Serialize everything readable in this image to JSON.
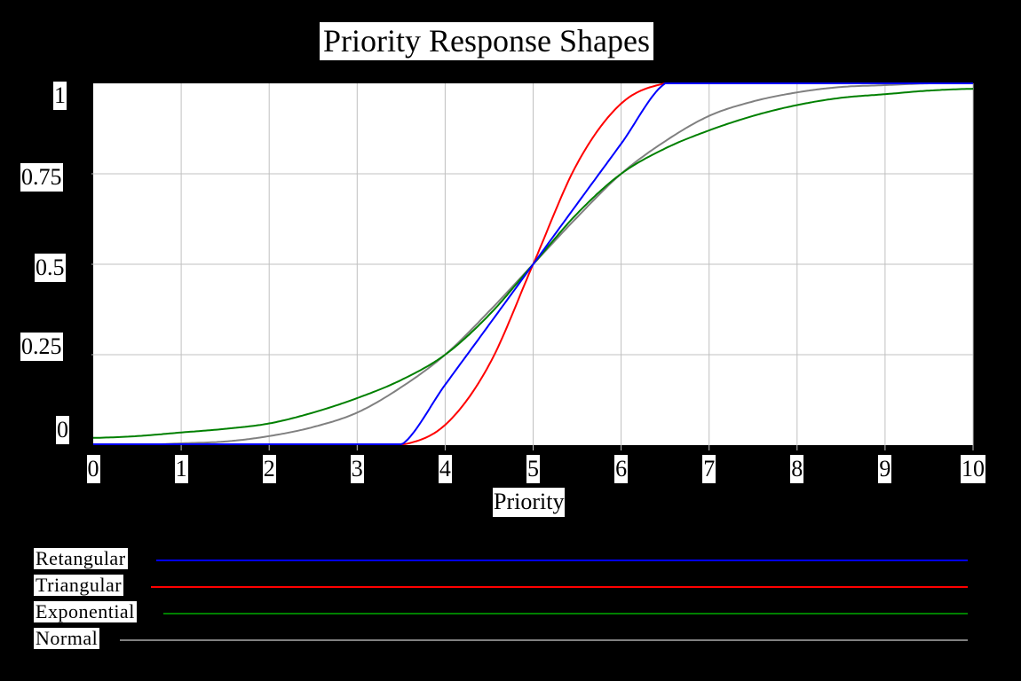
{
  "chart_data": {
    "type": "line",
    "title": "Priority Response Shapes",
    "xlabel": "Priority",
    "ylabel": "",
    "xlim": [
      0,
      10
    ],
    "ylim": [
      0,
      1
    ],
    "x_ticks": [
      "0",
      "1",
      "2",
      "3",
      "4",
      "5",
      "6",
      "7",
      "8",
      "9",
      "10"
    ],
    "y_ticks": [
      "0",
      "0.25",
      "0.5",
      "0.75",
      "1"
    ],
    "grid": true,
    "legend_position": "bottom",
    "x": [
      0,
      0.5,
      1,
      1.5,
      2,
      2.5,
      3,
      3.5,
      4,
      4.5,
      5,
      5.5,
      6,
      6.5,
      7,
      7.5,
      8,
      8.5,
      9,
      9.5,
      10
    ],
    "series": [
      {
        "name": "Retangular",
        "color": "#0000ff",
        "values": [
          0,
          0,
          0,
          0,
          0,
          0,
          0,
          0,
          0.167,
          0.333,
          0.5,
          0.667,
          0.833,
          1,
          1,
          1,
          1,
          1,
          1,
          1,
          1
        ]
      },
      {
        "name": "Triangular",
        "color": "#ff0000",
        "values": [
          0,
          0,
          0,
          0,
          0,
          0,
          0,
          0,
          0.056,
          0.222,
          0.5,
          0.778,
          0.944,
          1,
          1,
          1,
          1,
          1,
          1,
          1,
          1
        ]
      },
      {
        "name": "Exponential",
        "color": "#008000",
        "values": [
          0.02,
          0.025,
          0.035,
          0.045,
          0.06,
          0.09,
          0.13,
          0.18,
          0.25,
          0.36,
          0.5,
          0.64,
          0.75,
          0.82,
          0.87,
          0.91,
          0.94,
          0.96,
          0.97,
          0.98,
          0.985
        ]
      },
      {
        "name": "Normal",
        "color": "#808080",
        "values": [
          0,
          0,
          0.005,
          0.01,
          0.025,
          0.05,
          0.09,
          0.16,
          0.25,
          0.37,
          0.5,
          0.63,
          0.75,
          0.84,
          0.91,
          0.95,
          0.975,
          0.99,
          0.995,
          1,
          1
        ]
      }
    ]
  },
  "title": "Priority Response Shapes",
  "xlabel": "Priority",
  "legend": [
    {
      "label": "Retangular",
      "color": "#0000ff"
    },
    {
      "label": "Triangular",
      "color": "#ff0000"
    },
    {
      "label": "Exponential",
      "color": "#008000"
    },
    {
      "label": "Normal",
      "color": "#808080"
    }
  ]
}
